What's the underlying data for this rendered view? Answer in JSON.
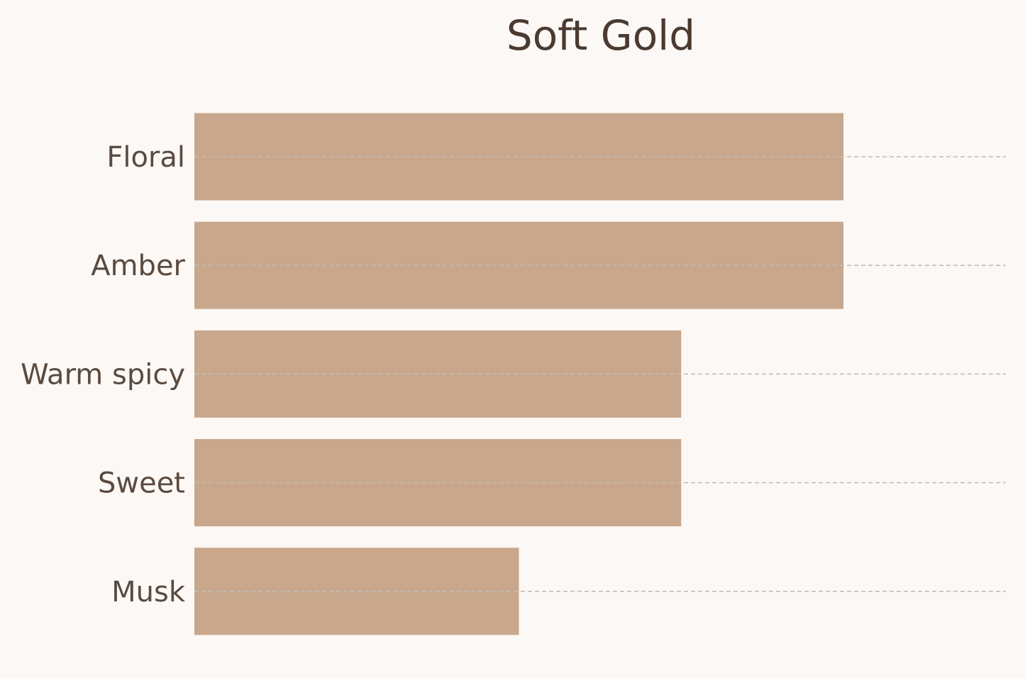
{
  "chart_data": {
    "type": "bar",
    "orientation": "horizontal",
    "title": "Soft Gold",
    "xlabel": "",
    "ylabel": "",
    "categories": [
      "Floral",
      "Amber",
      "Warm spicy",
      "Sweet",
      "Musk"
    ],
    "values": [
      4,
      4,
      3,
      3,
      2
    ],
    "xlim": [
      0,
      5
    ],
    "grid": "dashed horizontal guide at each category",
    "legend": "none",
    "colors": {
      "bar": "#c8a78c",
      "grid": "#c2bcb6",
      "title": "#4a3a30",
      "label": "#5a4a40",
      "background": "#fcf8f5"
    }
  }
}
